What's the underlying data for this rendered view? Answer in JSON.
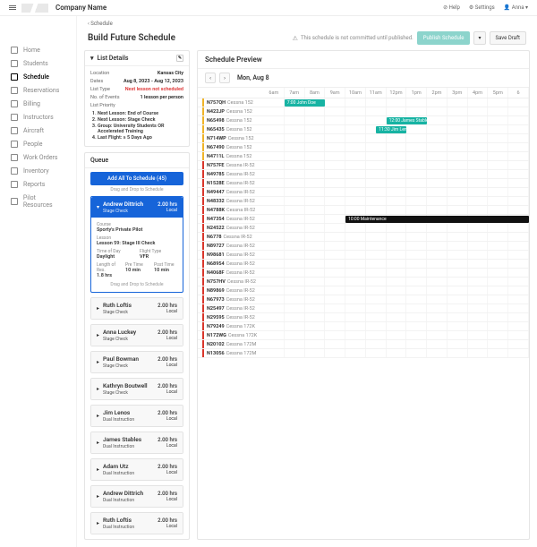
{
  "company": "Company Name",
  "top": {
    "help": "Help",
    "settings": "Settings",
    "user": "Anna"
  },
  "nav": [
    {
      "label": "Home"
    },
    {
      "label": "Students"
    },
    {
      "label": "Schedule",
      "active": true
    },
    {
      "label": "Reservations"
    },
    {
      "label": "Billing"
    },
    {
      "label": "Instructors"
    },
    {
      "label": "Aircraft"
    },
    {
      "label": "People"
    },
    {
      "label": "Work Orders"
    },
    {
      "label": "Inventory"
    },
    {
      "label": "Reports"
    },
    {
      "label": "Pilot Resources"
    }
  ],
  "crumb": "Schedule",
  "page_title": "Build Future Schedule",
  "warn_text": "This schedule is not committed until published.",
  "btn_publish": "Publish Schedule",
  "btn_save": "Save Draft",
  "panel_list_title": "List Details",
  "details": {
    "Location": "Kansas City",
    "Dates": "Aug 8, 2023 - Aug 12, 2023",
    "List Type": {
      "text": "Next lesson not scheduled",
      "red": true
    },
    "No. of Events": "1 lesson per person"
  },
  "lp_label": "List Priority",
  "priority": [
    "Next Lesson: End of Course",
    "Next Lesson: Stage Check",
    "Group: University Students OR Accelerated Training",
    "Last Flight: ≥ 5 Days Ago"
  ],
  "queue_title": "Queue",
  "add_all": "Add All To Schedule (45)",
  "dds": "Drag and Drop to Schedule",
  "active_card": {
    "name": "Andrew Dittrich",
    "sub": "Stage Check",
    "hrs": "2.00 hrs",
    "loc": "Local",
    "course_l": "Course",
    "course": "Sporty's Private Pilot",
    "lesson_l": "Lesson",
    "lesson": "Lesson 59: Stage III Check",
    "tod_l": "Time of Day",
    "tod": "Daylight",
    "ft_l": "Flight Type",
    "ft": "VFR",
    "len_l": "Length of Res.",
    "len": "1.8 hrs",
    "pre_l": "Pre Time",
    "pre": "10 min",
    "post_l": "Post Time",
    "post": "10 min",
    "dds": "Drag and Drop to Schedule"
  },
  "cards": [
    {
      "name": "Ruth Loftis",
      "sub": "Stage Check",
      "hrs": "2.00 hrs",
      "loc": "Local"
    },
    {
      "name": "Anna Luckey",
      "sub": "Stage Check",
      "hrs": "2.00 hrs",
      "loc": "Local"
    },
    {
      "name": "Paul Bowman",
      "sub": "Stage Check",
      "hrs": "2.00 hrs",
      "loc": "Local"
    },
    {
      "name": "Kathryn Boutwell",
      "sub": "Stage Check",
      "hrs": "2.00 hrs",
      "loc": "Local"
    },
    {
      "name": "Jim Lenos",
      "sub": "Dual Instruction",
      "hrs": "2.00 hrs",
      "loc": "Local"
    },
    {
      "name": "James Stables",
      "sub": "Dual Instruction",
      "hrs": "2.00 hrs",
      "loc": "Local"
    },
    {
      "name": "Adam Utz",
      "sub": "Dual Instruction",
      "hrs": "2.00 hrs",
      "loc": "Local"
    },
    {
      "name": "Andrew Dittrich",
      "sub": "Dual Instruction",
      "hrs": "2.00 hrs",
      "loc": "Local"
    },
    {
      "name": "Ruth Loftis",
      "sub": "Dual Instruction",
      "hrs": "2.00 hrs",
      "loc": "Local"
    }
  ],
  "preview_title": "Schedule Preview",
  "date": "Mon, Aug 8",
  "hours": [
    "6am",
    "7am",
    "8am",
    "9am",
    "10am",
    "11am",
    "12pm",
    "1pm",
    "2pm",
    "3pm",
    "4pm",
    "5pm",
    "6"
  ],
  "resources": [
    {
      "id": "N757QH",
      "type": "Cessna 152",
      "c": "#f0b429"
    },
    {
      "id": "N422JP",
      "type": "Cessna 152",
      "c": "#f0b429"
    },
    {
      "id": "N65498",
      "type": "Cessna 152",
      "c": "#f0b429"
    },
    {
      "id": "N65435",
      "type": "Cessna 152",
      "c": "#f0b429"
    },
    {
      "id": "N714WP",
      "type": "Cessna 152",
      "c": "#f0b429"
    },
    {
      "id": "N67490",
      "type": "Cessna 152",
      "c": "#f0b429"
    },
    {
      "id": "N4711L",
      "type": "Cessna 152",
      "c": "#f0b429"
    },
    {
      "id": "N757FE",
      "type": "Cessna IR-52",
      "c": "#d9362b"
    },
    {
      "id": "N49785",
      "type": "Cessna IR-52",
      "c": "#d9362b"
    },
    {
      "id": "N1528E",
      "type": "Cessna IR-52",
      "c": "#d9362b"
    },
    {
      "id": "N49447",
      "type": "Cessna IR-52",
      "c": "#d9362b"
    },
    {
      "id": "N48332",
      "type": "Cessna IR-52",
      "c": "#d9362b"
    },
    {
      "id": "N4788K",
      "type": "Cessna IR-52",
      "c": "#d9362b"
    },
    {
      "id": "N47354",
      "type": "Cessna IR-52",
      "c": "#d9362b"
    },
    {
      "id": "N24522",
      "type": "Cessna IR-52",
      "c": "#d9362b"
    },
    {
      "id": "N6778",
      "type": "Cessna IR-52",
      "c": "#d9362b"
    },
    {
      "id": "N89727",
      "type": "Cessna IR-52",
      "c": "#d9362b"
    },
    {
      "id": "N98681",
      "type": "Cessna IR-52",
      "c": "#d9362b"
    },
    {
      "id": "N68954",
      "type": "Cessna IR-52",
      "c": "#d9362b"
    },
    {
      "id": "N4068F",
      "type": "Cessna IR-52",
      "c": "#d9362b"
    },
    {
      "id": "N757HV",
      "type": "Cessna IR-52",
      "c": "#d9362b"
    },
    {
      "id": "N89869",
      "type": "Cessna IR-52",
      "c": "#d9362b"
    },
    {
      "id": "N67973",
      "type": "Cessna IR-52",
      "c": "#d9362b"
    },
    {
      "id": "N25497",
      "type": "Cessna IR-52",
      "c": "#d9362b"
    },
    {
      "id": "N29595",
      "type": "Cessna IR-52",
      "c": "#d9362b"
    },
    {
      "id": "N79249",
      "type": "Cessna 172K",
      "c": "#d9362b"
    },
    {
      "id": "N172WG",
      "type": "Cessna 172K",
      "c": "#d9362b"
    },
    {
      "id": "N20102",
      "type": "Cessna 172M",
      "c": "#d9362b"
    },
    {
      "id": "N13056",
      "type": "Cessna 172M",
      "c": "#d9362b"
    }
  ],
  "events": [
    {
      "row": 0,
      "start": 1,
      "span": 2,
      "color": "#17b3a3",
      "label": "7:00 John Doe"
    },
    {
      "row": 2,
      "start": 6,
      "span": 2,
      "color": "#17b3a3",
      "label": "12:00 James Stables"
    },
    {
      "row": 3,
      "start": 5.5,
      "span": 1.5,
      "color": "#17b3a3",
      "label": "11:30 Jim Lenos"
    },
    {
      "row": 13,
      "start": 4,
      "span": 9,
      "color": "#111",
      "label": "10:00 Maintenance"
    }
  ]
}
